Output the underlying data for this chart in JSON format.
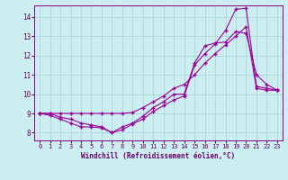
{
  "xlabel": "Windchill (Refroidissement éolien,°C)",
  "bg_color": "#cceef0",
  "line_color": "#990099",
  "xlim": [
    -0.5,
    23.5
  ],
  "ylim": [
    7.6,
    14.6
  ],
  "yticks": [
    8,
    9,
    10,
    11,
    12,
    13,
    14
  ],
  "xticks": [
    0,
    1,
    2,
    3,
    4,
    5,
    6,
    7,
    8,
    9,
    10,
    11,
    12,
    13,
    14,
    15,
    16,
    17,
    18,
    19,
    20,
    21,
    22,
    23
  ],
  "line1_x": [
    0,
    1,
    2,
    3,
    4,
    5,
    6,
    7,
    8,
    9,
    10,
    11,
    12,
    13,
    14,
    15,
    16,
    17,
    18,
    19,
    20,
    21,
    22,
    23
  ],
  "line1_y": [
    9.0,
    9.0,
    8.8,
    8.7,
    8.5,
    8.4,
    8.3,
    8.0,
    8.15,
    8.45,
    8.7,
    9.1,
    9.4,
    9.7,
    9.9,
    11.5,
    12.1,
    12.6,
    13.3,
    14.4,
    14.45,
    10.4,
    10.3,
    10.2
  ],
  "line2_x": [
    0,
    1,
    2,
    3,
    4,
    5,
    6,
    7,
    8,
    9,
    10,
    11,
    12,
    13,
    14,
    15,
    16,
    17,
    18,
    19,
    20,
    21,
    22,
    23
  ],
  "line2_y": [
    9.0,
    8.9,
    8.7,
    8.5,
    8.3,
    8.3,
    8.25,
    8.0,
    8.3,
    8.5,
    8.85,
    9.3,
    9.6,
    10.0,
    10.0,
    11.6,
    12.5,
    12.65,
    12.7,
    13.25,
    13.15,
    11.0,
    10.5,
    10.2
  ],
  "line3_x": [
    0,
    1,
    2,
    3,
    4,
    5,
    6,
    7,
    8,
    9,
    10,
    11,
    12,
    13,
    14,
    15,
    16,
    17,
    18,
    19,
    20,
    21,
    22,
    23
  ],
  "line3_y": [
    9.0,
    9.0,
    9.0,
    9.0,
    9.0,
    9.0,
    9.0,
    9.0,
    9.0,
    9.05,
    9.3,
    9.6,
    9.9,
    10.3,
    10.5,
    11.0,
    11.6,
    12.1,
    12.55,
    13.0,
    13.5,
    10.3,
    10.2,
    10.2
  ]
}
